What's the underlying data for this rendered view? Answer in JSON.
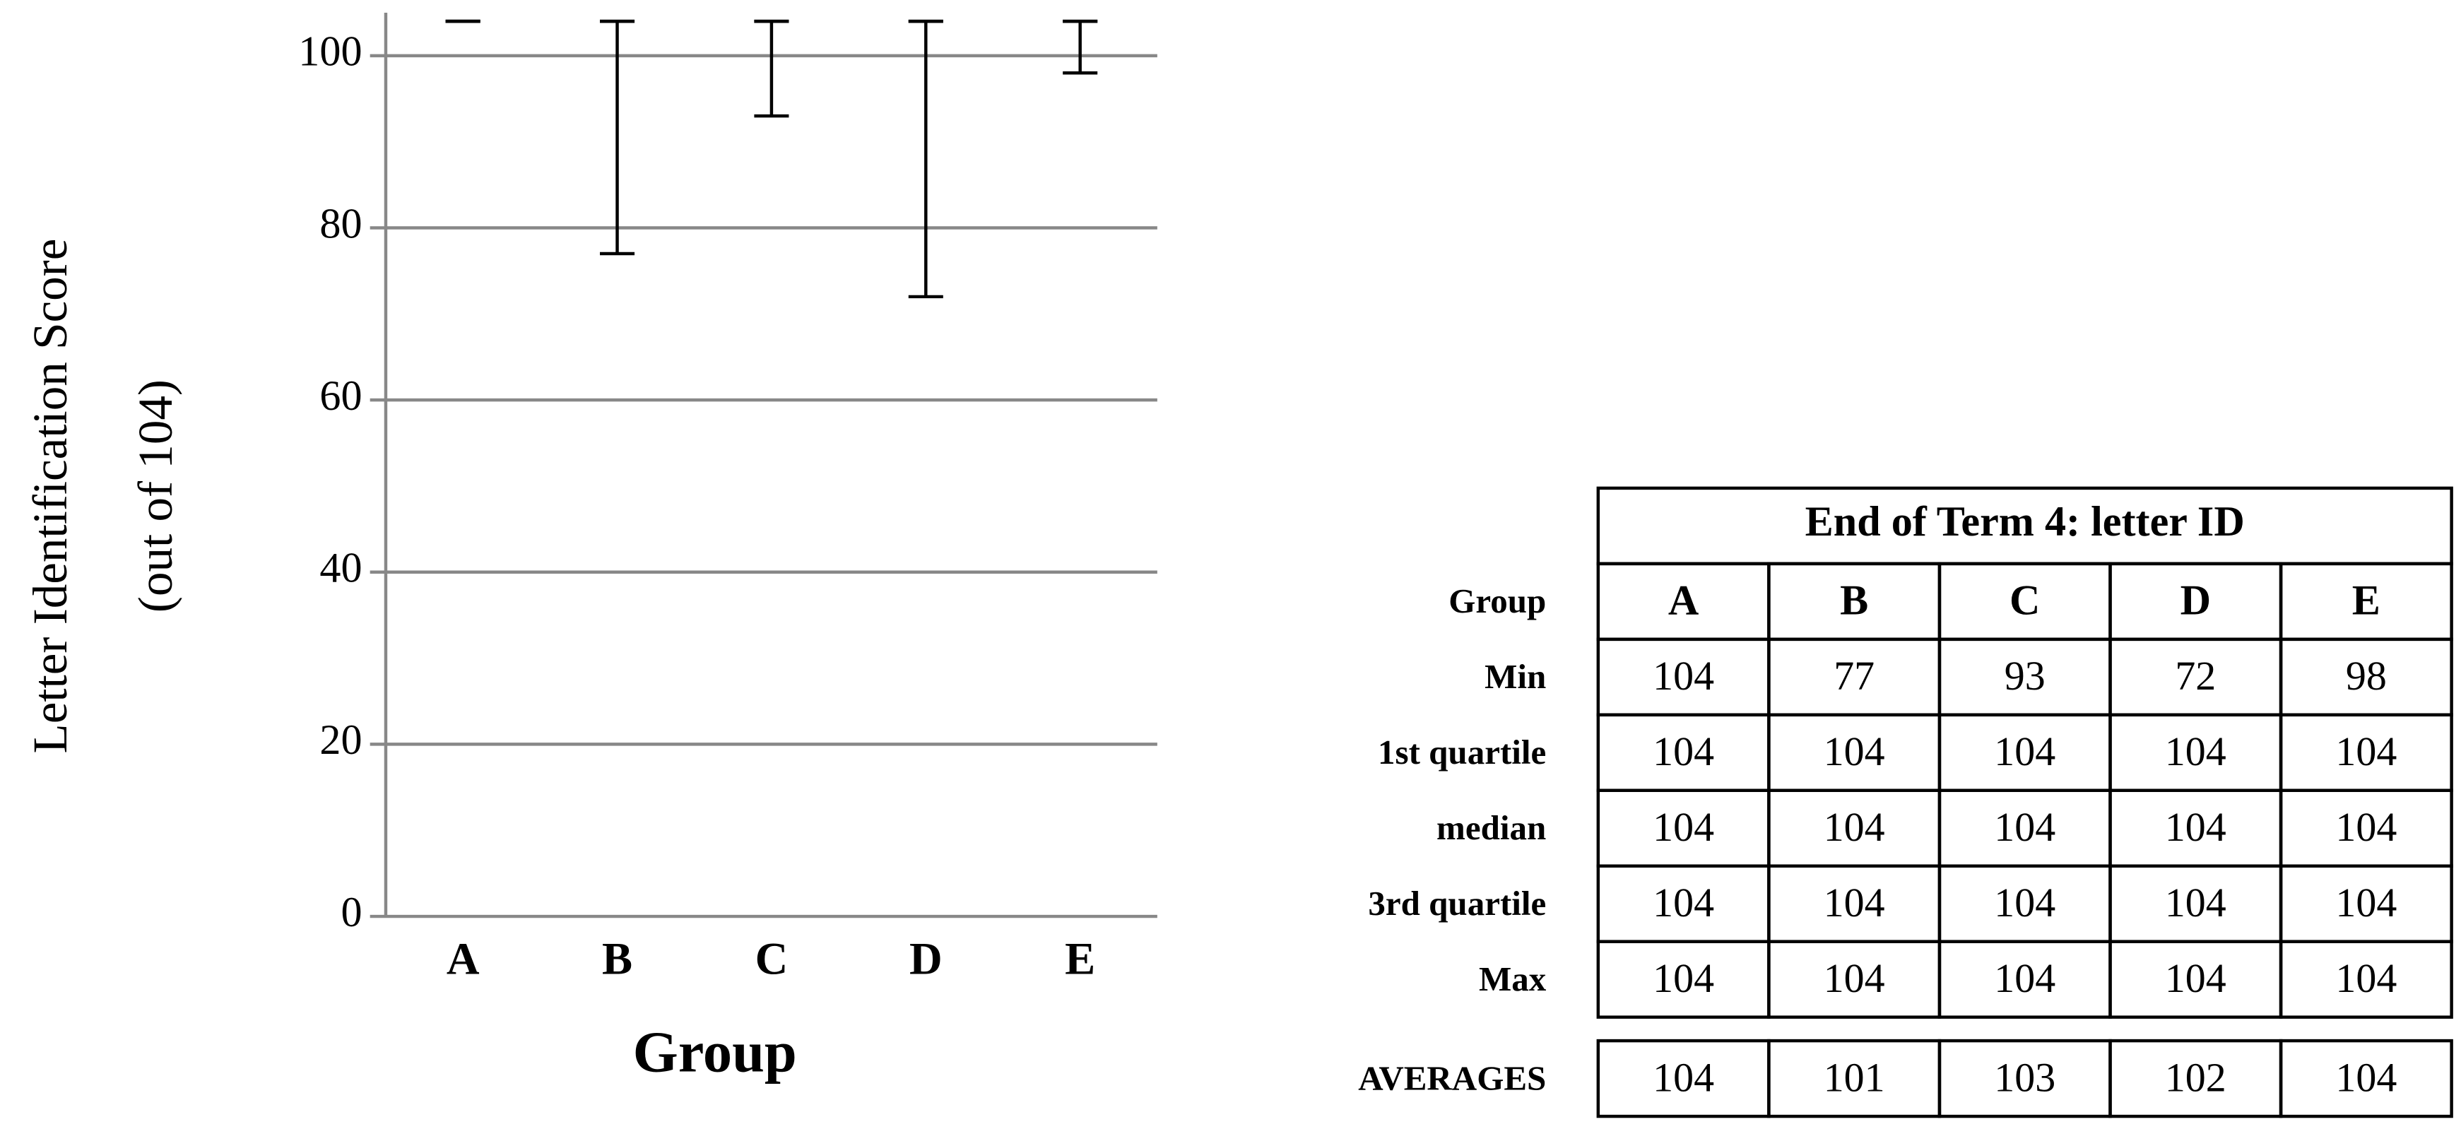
{
  "chart_data": {
    "type": "box",
    "x_label": "Group",
    "y_label": [
      "Letter Identification Score",
      "(out of 104)"
    ],
    "categories": [
      "A",
      "B",
      "C",
      "D",
      "E"
    ],
    "min": [
      104,
      77,
      93,
      72,
      98
    ],
    "q1": [
      104,
      104,
      104,
      104,
      104
    ],
    "median": [
      104,
      104,
      104,
      104,
      104
    ],
    "q3": [
      104,
      104,
      104,
      104,
      104
    ],
    "max": [
      104,
      104,
      104,
      104,
      104
    ],
    "ylim": [
      0,
      105
    ],
    "yticks": [
      0,
      20,
      40,
      60,
      80,
      100
    ],
    "grid": true,
    "color": "#000000"
  },
  "table": {
    "title": "End of Term 4: letter ID",
    "header": [
      "Group",
      "A",
      "B",
      "C",
      "D",
      "E"
    ],
    "rows": [
      [
        "Min",
        104,
        77,
        93,
        72,
        98
      ],
      [
        "1st quartile",
        104,
        104,
        104,
        104,
        104
      ],
      [
        "median",
        104,
        104,
        104,
        104,
        104
      ],
      [
        "3rd quartile",
        104,
        104,
        104,
        104,
        104
      ],
      [
        "Max",
        104,
        104,
        104,
        104,
        104
      ]
    ],
    "footer_row": [
      "AVERAGES",
      104,
      101,
      103,
      102,
      104
    ]
  }
}
